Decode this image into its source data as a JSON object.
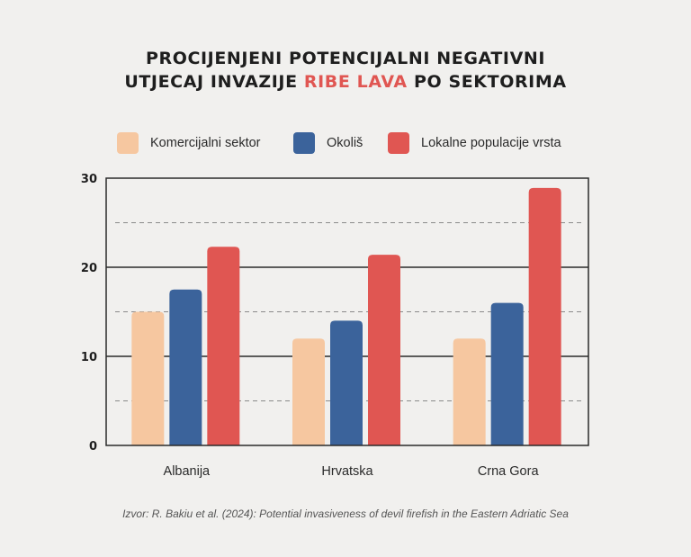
{
  "title": {
    "line1": "PROCIJENJENI POTENCIJALNI NEGATIVNI",
    "line2_pre": "UTJECAJ INVAZIJE ",
    "line2_highlight": "RIBE LAVA",
    "line2_post": " PO SEKTORIMA"
  },
  "colors": {
    "background": "#f1f0ee",
    "highlight": "#e05652",
    "series": [
      "#f6c7a0",
      "#3b639b",
      "#e05652"
    ]
  },
  "source": "Izvor: R. Bakiu et al. (2024): Potential invasiveness of devil firefish in the Eastern Adriatic Sea",
  "chart_data": {
    "type": "bar",
    "title": "PROCIJENJENI POTENCIJALNI NEGATIVNI UTJECAJ INVAZIJE RIBE LAVA PO SEKTORIMA",
    "xlabel": "",
    "ylabel": "",
    "categories": [
      "Albanija",
      "Hrvatska",
      "Crna Gora"
    ],
    "series": [
      {
        "name": "Komercijalni sektor",
        "values": [
          15,
          12,
          12
        ]
      },
      {
        "name": "Okoliš",
        "values": [
          17.5,
          14,
          16
        ]
      },
      {
        "name": "Lokalne populacije vrsta",
        "values": [
          22.3,
          21.4,
          28.9
        ]
      }
    ],
    "ylim": [
      0,
      30
    ],
    "yticks": [
      "0",
      "10",
      "20",
      "30"
    ],
    "minor_gridlines": [
      5,
      15,
      25
    ],
    "grid": true,
    "legend": "top"
  }
}
